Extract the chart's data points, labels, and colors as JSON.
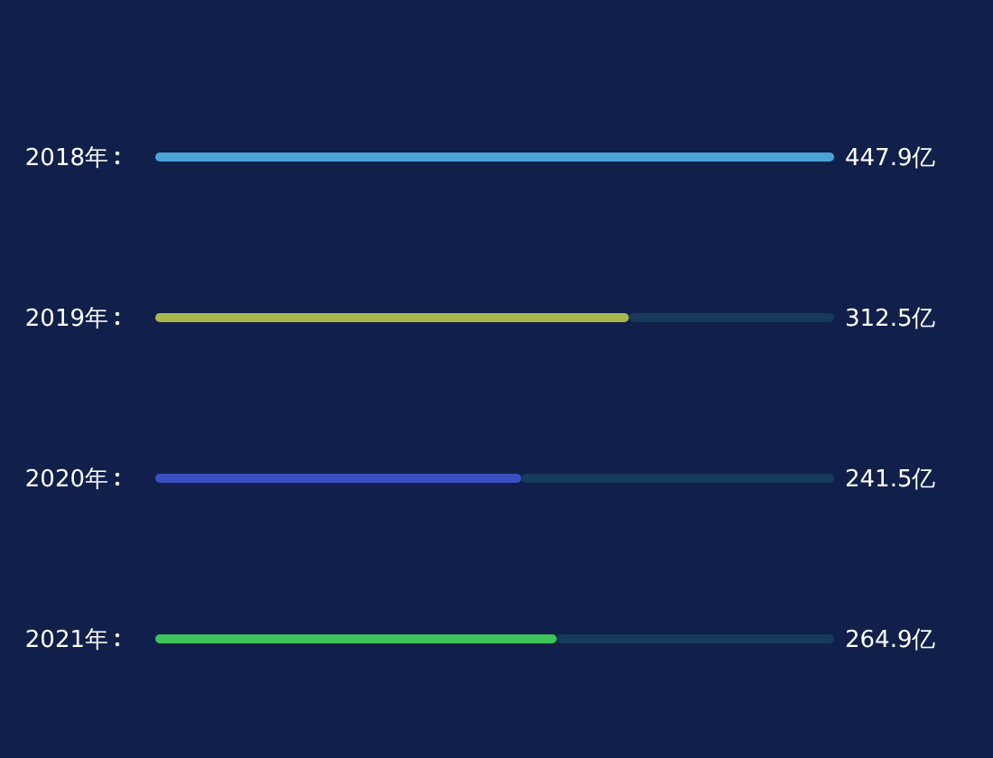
{
  "chart_data": {
    "type": "bar",
    "orientation": "horizontal",
    "categories": [
      "2018年",
      "2019年",
      "2020年",
      "2021年"
    ],
    "values": [
      447.9,
      312.5,
      241.5,
      264.9
    ],
    "colors": [
      "#4aa3d6",
      "#a9b84a",
      "#3a4fc4",
      "#3cc45a"
    ],
    "value_labels": [
      "447.9亿",
      "312.5亿",
      "241.5亿",
      "264.9亿"
    ]
  }
}
